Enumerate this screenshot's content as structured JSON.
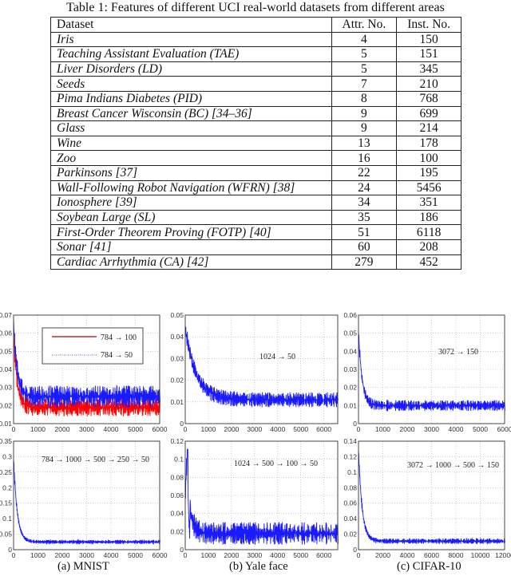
{
  "table": {
    "caption": "Table 1: Features of different UCI real-world datasets from different areas",
    "headers": [
      "Dataset",
      "Attr. No.",
      "Inst. No."
    ],
    "rows": [
      {
        "name": "Iris",
        "attr": "4",
        "inst": "150"
      },
      {
        "name": "Teaching Assistant Evaluation (TAE)",
        "attr": "5",
        "inst": "151"
      },
      {
        "name": "Liver Disorders (LD)",
        "attr": "5",
        "inst": "345"
      },
      {
        "name": "Seeds",
        "attr": "7",
        "inst": "210"
      },
      {
        "name": "Pima Indians Diabetes (PID)",
        "attr": "8",
        "inst": "768"
      },
      {
        "name": "Breast Cancer Wisconsin (BC) [34–36]",
        "attr": "9",
        "inst": "699"
      },
      {
        "name": "Glass",
        "attr": "9",
        "inst": "214"
      },
      {
        "name": "Wine",
        "attr": "13",
        "inst": "178"
      },
      {
        "name": "Zoo",
        "attr": "16",
        "inst": "100"
      },
      {
        "name": "Parkinsons [37]",
        "attr": "22",
        "inst": "195"
      },
      {
        "name": "Wall-Following Robot Navigation (WFRN) [38]",
        "attr": "24",
        "inst": "5456"
      },
      {
        "name": "Ionosphere [39]",
        "attr": "34",
        "inst": "351"
      },
      {
        "name": "Soybean Large (SL)",
        "attr": "35",
        "inst": "186"
      },
      {
        "name": "First-Order Theorem Proving (FOTP) [40]",
        "attr": "51",
        "inst": "6118"
      },
      {
        "name": "Sonar [41]",
        "attr": "60",
        "inst": "208"
      },
      {
        "name": "Cardiac Arrhythmia (CA) [42]",
        "attr": "279",
        "inst": "452"
      }
    ]
  },
  "figure": {
    "subcaptions": [
      "(a) MNIST",
      "(b) Yale face",
      "(c) CIFAR-10"
    ]
  },
  "colors": {
    "blue": "#1a1aff",
    "red": "#ff0000",
    "dark_red": "#b00000",
    "axis": "#333333",
    "grid": "#aaaaaa"
  },
  "chart_data": [
    {
      "type": "line",
      "panel": "(a) MNIST top",
      "x_ticks": [
        0,
        1000,
        2000,
        3000,
        4000,
        5000,
        6000
      ],
      "xlim": [
        0,
        6000
      ],
      "y_ticks": [
        0.01,
        0.02,
        0.03,
        0.04,
        0.05,
        0.06,
        0.07
      ],
      "ylim": [
        0.01,
        0.07
      ],
      "grid": true,
      "legend_position": "upper right",
      "series": [
        {
          "name": "784 → 100",
          "color": "#ff0000",
          "start": 0.058,
          "plateau_mean": 0.019,
          "plateau_range": [
            0.014,
            0.024
          ]
        },
        {
          "name": "784 → 50",
          "color": "#1a1aff",
          "start": 0.065,
          "plateau_mean": 0.025,
          "plateau_range": [
            0.02,
            0.032
          ]
        }
      ]
    },
    {
      "type": "line",
      "panel": "(a) MNIST bottom",
      "x_ticks": [
        0,
        1000,
        2000,
        3000,
        4000,
        5000,
        6000
      ],
      "xlim": [
        0,
        6000
      ],
      "y_ticks": [
        0,
        0.05,
        0.1,
        0.15,
        0.2,
        0.25,
        0.3,
        0.35
      ],
      "ylim": [
        0,
        0.35
      ],
      "grid": true,
      "annotation": "784 → 1000 → 500 → 250 → 50",
      "series": [
        {
          "name": "784 → 1000 → 500 → 250 → 50",
          "color": "#1a1aff",
          "start": 0.285,
          "plateau_mean": 0.025,
          "plateau_range": [
            0.02,
            0.033
          ]
        }
      ]
    },
    {
      "type": "line",
      "panel": "(b) Yale face top",
      "x_ticks": [
        0,
        1000,
        2000,
        3000,
        4000,
        5000,
        6000
      ],
      "xlim": [
        0,
        6600
      ],
      "y_ticks": [
        0,
        0.01,
        0.02,
        0.03,
        0.04,
        0.05
      ],
      "ylim": [
        0,
        0.05
      ],
      "grid": true,
      "annotation": "1024 → 50",
      "series": [
        {
          "name": "1024 → 50",
          "color": "#1a1aff",
          "start": 0.044,
          "plateau_mean": 0.011,
          "plateau_range": [
            0.007,
            0.014
          ]
        }
      ]
    },
    {
      "type": "line",
      "panel": "(b) Yale face bottom",
      "x_ticks": [
        0,
        1000,
        2000,
        3000,
        4000,
        5000,
        6000
      ],
      "xlim": [
        0,
        6600
      ],
      "y_ticks": [
        0,
        0.02,
        0.04,
        0.06,
        0.08,
        0.1,
        0.12
      ],
      "ylim": [
        0,
        0.12
      ],
      "grid": true,
      "annotation": "1024 → 500 → 100 → 50",
      "series": [
        {
          "name": "1024 → 500 → 100 → 50",
          "color": "#1a1aff",
          "peak": 0.11,
          "plateau_mean": 0.018,
          "plateau_range": [
            0.01,
            0.035
          ]
        }
      ]
    },
    {
      "type": "line",
      "panel": "(c) CIFAR-10 top",
      "x_ticks": [
        0,
        1000,
        2000,
        3000,
        4000,
        5000,
        6000
      ],
      "xlim": [
        0,
        6000
      ],
      "y_ticks": [
        0,
        0.01,
        0.02,
        0.03,
        0.04,
        0.05,
        0.06
      ],
      "ylim": [
        0,
        0.06
      ],
      "grid": true,
      "annotation": "3072 → 150",
      "series": [
        {
          "name": "3072 → 150",
          "color": "#1a1aff",
          "start": 0.049,
          "plateau_mean": 0.01,
          "plateau_range": [
            0.008,
            0.014
          ]
        }
      ]
    },
    {
      "type": "line",
      "panel": "(c) CIFAR-10 bottom",
      "x_ticks": [
        0,
        2000,
        4000,
        6000,
        8000,
        10000,
        12000
      ],
      "xlim": [
        0,
        12000
      ],
      "y_ticks": [
        0,
        0.02,
        0.04,
        0.06,
        0.08,
        0.1,
        0.12,
        0.14
      ],
      "ylim": [
        0,
        0.14
      ],
      "grid": true,
      "annotation": "3072 → 1000 → 500 → 150",
      "series": [
        {
          "name": "3072 → 1000 → 500 → 150",
          "color": "#1a1aff",
          "start": 0.125,
          "plateau_mean": 0.011,
          "plateau_range": [
            0.009,
            0.016
          ]
        }
      ]
    }
  ]
}
